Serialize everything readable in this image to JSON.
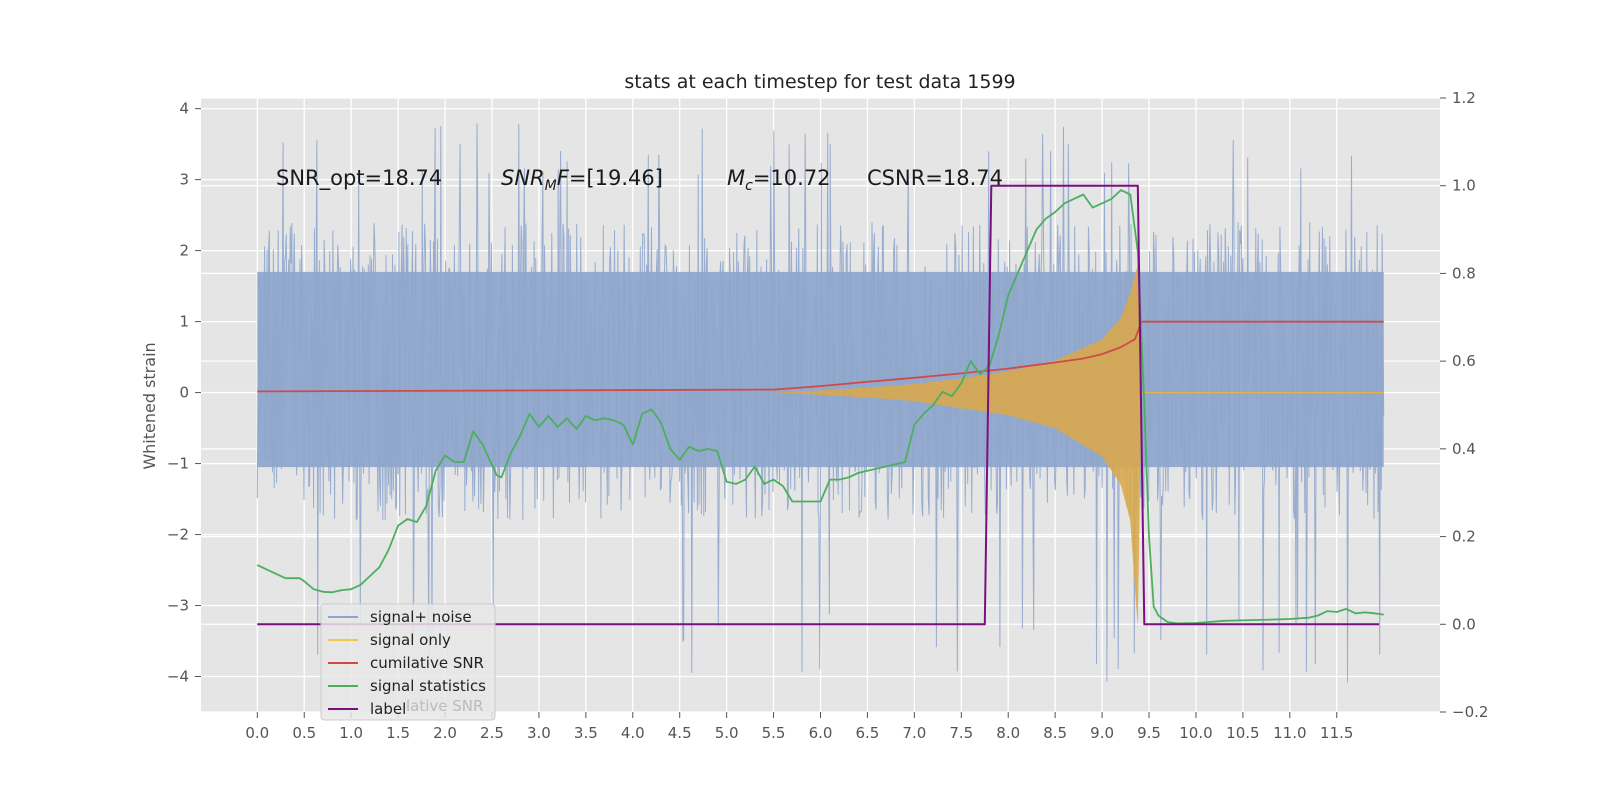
{
  "chart_data": {
    "type": "line",
    "title": "stats at each timestep for test data 1599",
    "ylabel": "Whitened strain",
    "ylabel_right": "",
    "xlabel": "",
    "xlim": [
      -0.6,
      12.6
    ],
    "ylim": [
      -4.5,
      4.15
    ],
    "ylim_right": [
      -0.2,
      1.2
    ],
    "grid": true,
    "background": "#e5e5e5",
    "x_ticks": [
      "0.0",
      "0.5",
      "1.0",
      "1.5",
      "2.0",
      "2.5",
      "3.0",
      "3.5",
      "4.0",
      "4.5",
      "5.0",
      "5.5",
      "6.0",
      "6.5",
      "7.0",
      "7.5",
      "8.0",
      "8.5",
      "9.0",
      "9.5",
      "10.0",
      "10.5",
      "11.0",
      "11.5"
    ],
    "y_ticks_left": [
      "4",
      "3",
      "2",
      "1",
      "0",
      "−1",
      "−2",
      "−3",
      "−4"
    ],
    "y_ticks_right": [
      "1.2",
      "1.0",
      "0.8",
      "0.6",
      "0.4",
      "0.2",
      "0.0",
      "−0.2"
    ],
    "annotations": {
      "snr_opt": "SNR_opt=18.74",
      "snr_mf_main": "SNR",
      "snr_mf_sub": "M",
      "snr_mf_rest": "F",
      "snr_mf_value": "=[19.46]",
      "mc_main": "M",
      "mc_sub": "c",
      "mc_value": "=10.72",
      "csnr": "CSNR=18.74"
    },
    "legend": {
      "placement": "lower-left",
      "entries": [
        {
          "label": "signal+ noise",
          "color": "#8fa6cc"
        },
        {
          "label": "signal only",
          "color": "#f2c64c"
        },
        {
          "label": "cumilative SNR",
          "color": "#d04a4a"
        },
        {
          "label": "signal statistics",
          "color": "#4caf5e"
        },
        {
          "label": "label",
          "color": "#7a1080"
        }
      ],
      "ghost_text": "lative SNR"
    },
    "series": [
      {
        "name": "signal+ noise",
        "axis": "left",
        "color": "#8fa6cc",
        "kind": "noise band",
        "x_range": [
          0.0,
          12.0
        ],
        "typical_range": [
          -1.8,
          2.4
        ],
        "extremes": [
          -4.1,
          3.8
        ]
      },
      {
        "name": "signal only",
        "axis": "left",
        "color": "#d8a84e",
        "kind": "chirp envelope",
        "x": [
          5.5,
          6.0,
          6.5,
          7.0,
          7.5,
          8.0,
          8.5,
          9.0,
          9.2,
          9.3,
          9.38,
          9.42,
          12.0
        ],
        "upper": [
          0.0,
          0.03,
          0.07,
          0.12,
          0.2,
          0.3,
          0.45,
          0.75,
          1.05,
          1.4,
          1.8,
          0.0,
          0.0
        ],
        "lower": [
          0.0,
          -0.03,
          -0.07,
          -0.12,
          -0.22,
          -0.32,
          -0.5,
          -0.9,
          -1.3,
          -1.8,
          -3.3,
          0.0,
          0.0
        ]
      },
      {
        "name": "cumilative SNR",
        "axis": "right",
        "color": "#d04a4a",
        "x": [
          0.0,
          5.5,
          6.0,
          6.5,
          7.0,
          7.5,
          8.0,
          8.5,
          8.8,
          9.0,
          9.2,
          9.35,
          9.42,
          12.0
        ],
        "y": [
          0.531,
          0.535,
          0.543,
          0.553,
          0.562,
          0.572,
          0.583,
          0.597,
          0.606,
          0.616,
          0.632,
          0.65,
          0.69,
          0.69
        ]
      },
      {
        "name": "signal statistics",
        "axis": "right",
        "color": "#4caf5e",
        "x": [
          0.0,
          0.15,
          0.3,
          0.45,
          0.5,
          0.6,
          0.7,
          0.8,
          0.9,
          1.0,
          1.1,
          1.2,
          1.3,
          1.4,
          1.5,
          1.6,
          1.7,
          1.8,
          1.9,
          2.0,
          2.1,
          2.2,
          2.3,
          2.4,
          2.55,
          2.6,
          2.7,
          2.8,
          2.9,
          3.0,
          3.1,
          3.2,
          3.3,
          3.4,
          3.5,
          3.6,
          3.7,
          3.8,
          3.9,
          4.0,
          4.1,
          4.2,
          4.3,
          4.4,
          4.5,
          4.6,
          4.7,
          4.8,
          4.9,
          5.0,
          5.1,
          5.2,
          5.3,
          5.4,
          5.5,
          5.6,
          5.7,
          5.8,
          5.9,
          6.0,
          6.1,
          6.2,
          6.3,
          6.4,
          6.5,
          6.6,
          6.7,
          6.8,
          6.9,
          7.0,
          7.1,
          7.2,
          7.3,
          7.4,
          7.5,
          7.6,
          7.7,
          7.8,
          7.9,
          8.0,
          8.1,
          8.2,
          8.3,
          8.4,
          8.5,
          8.6,
          8.7,
          8.8,
          8.9,
          9.0,
          9.1,
          9.2,
          9.3,
          9.38,
          9.45,
          9.5,
          9.55,
          9.6,
          9.7,
          9.8,
          10.0,
          10.3,
          10.7,
          11.0,
          11.2,
          11.3,
          11.4,
          11.5,
          11.6,
          11.7,
          11.8,
          11.9,
          12.0
        ],
        "y": [
          0.135,
          0.12,
          0.105,
          0.105,
          0.098,
          0.08,
          0.074,
          0.073,
          0.078,
          0.08,
          0.09,
          0.11,
          0.13,
          0.17,
          0.225,
          0.24,
          0.233,
          0.27,
          0.35,
          0.385,
          0.37,
          0.37,
          0.44,
          0.41,
          0.34,
          0.335,
          0.39,
          0.43,
          0.48,
          0.45,
          0.475,
          0.45,
          0.47,
          0.445,
          0.475,
          0.465,
          0.47,
          0.465,
          0.455,
          0.41,
          0.48,
          0.49,
          0.46,
          0.4,
          0.375,
          0.405,
          0.395,
          0.4,
          0.395,
          0.325,
          0.32,
          0.33,
          0.36,
          0.32,
          0.33,
          0.315,
          0.28,
          0.28,
          0.28,
          0.28,
          0.33,
          0.33,
          0.335,
          0.345,
          0.35,
          0.355,
          0.36,
          0.365,
          0.37,
          0.455,
          0.48,
          0.5,
          0.53,
          0.52,
          0.55,
          0.6,
          0.57,
          0.59,
          0.66,
          0.75,
          0.8,
          0.85,
          0.9,
          0.925,
          0.94,
          0.96,
          0.97,
          0.98,
          0.95,
          0.96,
          0.97,
          0.99,
          0.98,
          0.85,
          0.5,
          0.2,
          0.04,
          0.02,
          0.005,
          0.002,
          0.003,
          0.008,
          0.01,
          0.012,
          0.015,
          0.02,
          0.03,
          0.028,
          0.035,
          0.025,
          0.027,
          0.025,
          0.022
        ]
      },
      {
        "name": "label",
        "axis": "right",
        "color": "#7a1080",
        "x": [
          0.0,
          7.75,
          7.82,
          9.38,
          9.45,
          11.95
        ],
        "y": [
          0.0,
          0.0,
          1.0,
          1.0,
          0.0,
          0.0
        ]
      }
    ]
  }
}
